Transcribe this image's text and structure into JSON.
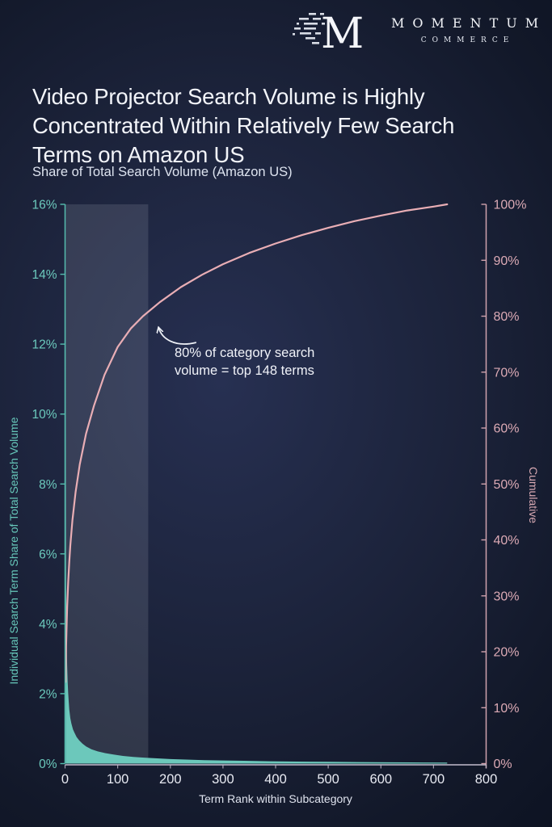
{
  "brand": {
    "monogram": "M",
    "name": "MOMENTUM",
    "subname": "COMMERCE"
  },
  "title": "Video Projector Search Volume is Highly Concentrated Within Relatively Few Search Terms on Amazon US",
  "chart_data": {
    "type": "line",
    "title": "Share of Total Search Volume (Amazon US)",
    "xlabel": "Term Rank within Subcategory",
    "xlim": [
      0,
      800
    ],
    "x_ticks": [
      0,
      100,
      200,
      300,
      400,
      500,
      600,
      700,
      800
    ],
    "grid": false,
    "left_axis": {
      "label": "Individual Search Term Share of Total Search Volume",
      "max": 16,
      "tick_values": [
        0,
        2,
        4,
        6,
        8,
        10,
        12,
        14,
        16
      ],
      "tick_labels": [
        "0%",
        "2%",
        "4%",
        "6%",
        "8%",
        "10%",
        "12%",
        "14%",
        "16%"
      ]
    },
    "right_axis": {
      "label": "Cumulative",
      "max": 100,
      "tick_values": [
        0,
        10,
        20,
        30,
        40,
        50,
        60,
        70,
        80,
        90,
        100
      ],
      "tick_labels": [
        "0%",
        "10%",
        "20%",
        "30%",
        "40%",
        "50%",
        "60%",
        "70%",
        "80%",
        "90%",
        "100%"
      ]
    },
    "highlight_region": {
      "x_start": 0,
      "x_end": 158
    },
    "series": [
      {
        "name": "Individual Search Term Share of Total Search Volume",
        "type": "area",
        "axis": "left",
        "color": "#6cc8bb",
        "x": [
          1,
          2,
          3,
          4,
          5,
          6,
          7,
          8,
          10,
          12,
          15,
          18,
          22,
          27,
          33,
          40,
          50,
          62,
          76,
          92,
          110,
          130,
          150,
          175,
          200,
          230,
          265,
          300,
          340,
          390,
          440,
          500,
          560,
          620,
          680,
          726
        ],
        "y": [
          14.6,
          5.2,
          3.5,
          2.8,
          2.3,
          2.0,
          1.75,
          1.55,
          1.3,
          1.15,
          0.98,
          0.88,
          0.76,
          0.66,
          0.57,
          0.49,
          0.41,
          0.35,
          0.3,
          0.26,
          0.22,
          0.19,
          0.17,
          0.15,
          0.13,
          0.115,
          0.1,
          0.09,
          0.08,
          0.068,
          0.058,
          0.05,
          0.043,
          0.038,
          0.033,
          0.03
        ]
      },
      {
        "name": "Cumulative",
        "type": "line",
        "axis": "right",
        "color": "#e9aeb5",
        "x": [
          1,
          2,
          3,
          4,
          6,
          8,
          10,
          14,
          20,
          28,
          40,
          55,
          75,
          100,
          125,
          148,
          180,
          220,
          260,
          300,
          350,
          400,
          450,
          500,
          550,
          600,
          650,
          700,
          726
        ],
        "y": [
          14.6,
          21.0,
          25.0,
          28.0,
          32.5,
          36.0,
          39.0,
          43.5,
          48.5,
          53.5,
          59.0,
          64.0,
          69.5,
          74.5,
          77.8,
          80.0,
          82.5,
          85.2,
          87.4,
          89.3,
          91.3,
          93.0,
          94.5,
          95.8,
          97.0,
          98.0,
          98.9,
          99.6,
          100.0
        ]
      }
    ],
    "annotation": {
      "text_line1": "80% of category search",
      "text_line2": "volume = top 148 terms",
      "arrow_tip_x": 176,
      "arrow_tip_y": 78.6
    }
  },
  "colors": {
    "teal": "#6cc8bb",
    "teal_axis": "#55bcae",
    "teal_label": "#6ccabd",
    "pink": "#e9aeb5",
    "pink_axis": "#cfa2ad",
    "pink_label": "#dcaab5",
    "x_label": "#e8eaf2",
    "x_axis_line": "#c3bccd",
    "highlight": "rgba(185,190,205,0.16)",
    "annotation_arrow": "#eef1f7",
    "background_center": "#273052",
    "background_edge": "#0c1221"
  }
}
